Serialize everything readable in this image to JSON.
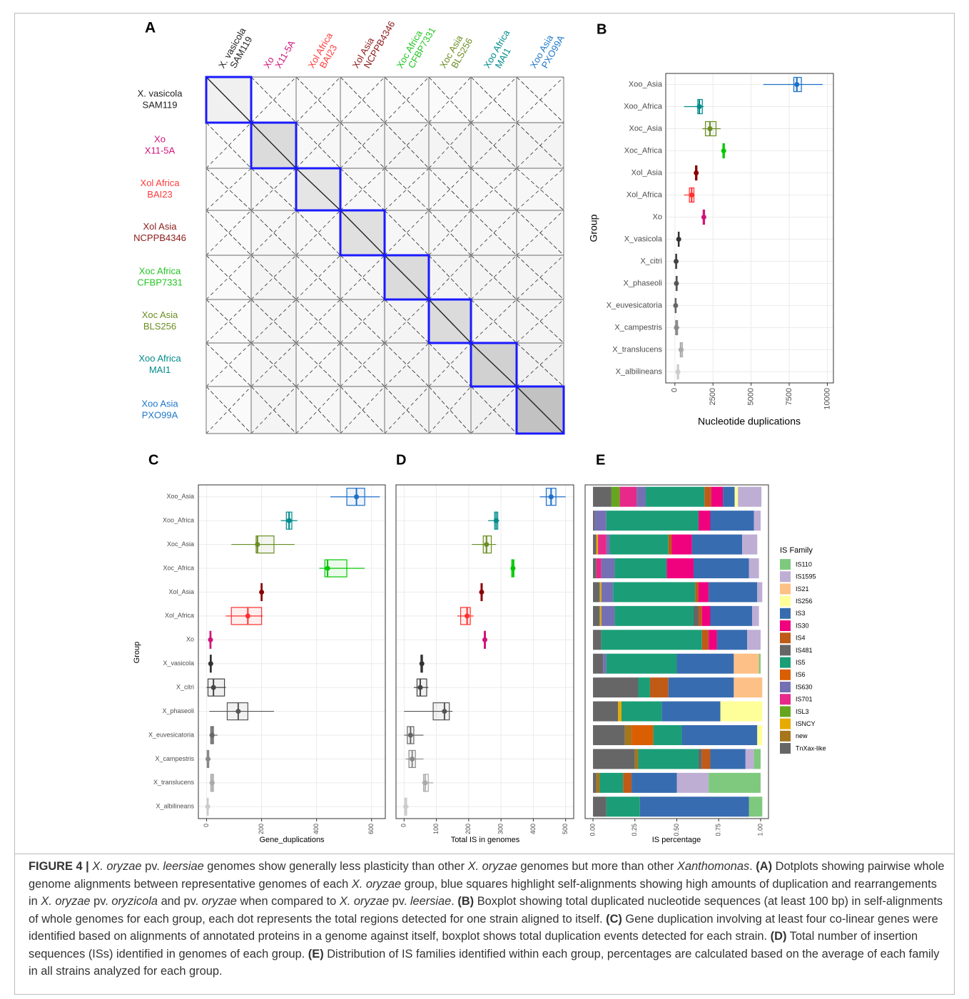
{
  "dotplot": {
    "label": "A",
    "strains": [
      {
        "lines": [
          "X. vasicola",
          "SAM119"
        ],
        "color": "#222222"
      },
      {
        "lines": [
          "Xo",
          "X11-5A"
        ],
        "color": "#d0157a"
      },
      {
        "lines": [
          "Xol Africa",
          "BAI23"
        ],
        "color": "#ff3a3a"
      },
      {
        "lines": [
          "Xol Asia",
          "NCPPB4346"
        ],
        "color": "#8b1a1a"
      },
      {
        "lines": [
          "Xoc Africa",
          "CFBP7331"
        ],
        "color": "#22c422"
      },
      {
        "lines": [
          "Xoc Asia",
          "BLS256"
        ],
        "color": "#6b8e23"
      },
      {
        "lines": [
          "Xoo Africa",
          "MAI1"
        ],
        "color": "#008b8b"
      },
      {
        "lines": [
          "Xoo Asia",
          "PXO99A"
        ],
        "color": "#1f78c8"
      }
    ]
  },
  "chart_data": [
    {
      "type": "boxplot",
      "label": "B",
      "xlabel": "Nucleotide duplications",
      "ylabel": "Group",
      "categories": [
        "Xoo_Asia",
        "Xoo_Africa",
        "Xoc_Asia",
        "Xoc_Africa",
        "Xol_Asia",
        "Xol_Africa",
        "Xo",
        "X_vasicola",
        "X_citri",
        "X_phaseoli",
        "X_euvesicatoria",
        "X_campestris",
        "X_translucens",
        "X_albilineans"
      ],
      "colors": [
        "#1f6fc8",
        "#008b8b",
        "#6b8e23",
        "#00c800",
        "#8b0000",
        "#ff3030",
        "#d0157a",
        "#333333",
        "#444444",
        "#555555",
        "#666666",
        "#888888",
        "#aaaaaa",
        "#cccccc"
      ],
      "min": [
        5800,
        600,
        1800,
        3100,
        1300,
        600,
        1800,
        200,
        0,
        0,
        0,
        0,
        300,
        100
      ],
      "q1": [
        7800,
        1500,
        2000,
        3150,
        1350,
        950,
        1850,
        220,
        50,
        80,
        20,
        50,
        350,
        150
      ],
      "median": [
        8000,
        1600,
        2300,
        3200,
        1400,
        1100,
        1900,
        250,
        80,
        100,
        50,
        100,
        400,
        200
      ],
      "q3": [
        8300,
        1800,
        2700,
        3250,
        1450,
        1250,
        1950,
        280,
        120,
        150,
        80,
        180,
        500,
        250
      ],
      "max": [
        9700,
        1900,
        3000,
        3300,
        1500,
        1300,
        2000,
        300,
        150,
        200,
        100,
        300,
        600,
        300
      ],
      "xlim": [
        -600,
        10400
      ],
      "xticks": [
        0,
        2500,
        5000,
        7500,
        10000
      ],
      "grid": true
    },
    {
      "type": "boxplot",
      "label": "C",
      "xlabel": "Gene_duplications",
      "ylabel": "Group",
      "categories": [
        "Xoo_Asia",
        "Xoo_Africa",
        "Xoc_Asia",
        "Xoc_Africa",
        "Xol_Asia",
        "Xol_Africa",
        "Xo",
        "X_vasicola",
        "X_citri",
        "X_phaseoli",
        "X_euvesicatoria",
        "X_campestris",
        "X_translucens",
        "X_albilineans"
      ],
      "colors": [
        "#1f6fc8",
        "#008b8b",
        "#6b8e23",
        "#00c800",
        "#8b0000",
        "#ff3030",
        "#d0157a",
        "#333333",
        "#444444",
        "#555555",
        "#666666",
        "#888888",
        "#aaaaaa",
        "#cccccc"
      ],
      "min": [
        450,
        270,
        90,
        410,
        195,
        70,
        10,
        12,
        0,
        10,
        10,
        0,
        10,
        0
      ],
      "q1": [
        510,
        290,
        180,
        430,
        198,
        90,
        12,
        13,
        5,
        75,
        15,
        2,
        15,
        2
      ],
      "median": [
        545,
        300,
        185,
        440,
        200,
        150,
        14,
        15,
        25,
        115,
        20,
        5,
        20,
        4
      ],
      "q3": [
        575,
        310,
        245,
        510,
        202,
        200,
        16,
        17,
        65,
        150,
        25,
        8,
        25,
        6
      ],
      "max": [
        630,
        330,
        320,
        575,
        205,
        205,
        18,
        18,
        70,
        245,
        40,
        15,
        30,
        8
      ],
      "xlim": [
        -30,
        650
      ],
      "xticks": [
        0,
        200,
        400,
        600
      ],
      "grid": true
    },
    {
      "type": "boxplot",
      "label": "D",
      "xlabel": "Total IS in genomes",
      "colors": [
        "#1f6fc8",
        "#008b8b",
        "#6b8e23",
        "#00c800",
        "#8b0000",
        "#ff3030",
        "#d0157a",
        "#333333",
        "#444444",
        "#555555",
        "#666666",
        "#888888",
        "#aaaaaa",
        "#cccccc"
      ],
      "min": [
        420,
        260,
        210,
        330,
        235,
        165,
        245,
        50,
        30,
        0,
        0,
        5,
        55,
        0
      ],
      "q1": [
        440,
        280,
        245,
        333,
        238,
        175,
        248,
        52,
        40,
        90,
        10,
        15,
        60,
        2
      ],
      "median": [
        455,
        285,
        255,
        337,
        240,
        195,
        250,
        55,
        50,
        125,
        20,
        25,
        65,
        5
      ],
      "q3": [
        470,
        290,
        270,
        340,
        242,
        205,
        252,
        57,
        70,
        140,
        30,
        35,
        75,
        8
      ],
      "max": [
        500,
        295,
        285,
        345,
        245,
        215,
        255,
        60,
        75,
        150,
        60,
        60,
        90,
        15
      ],
      "xlim": [
        -25,
        525
      ],
      "xticks": [
        0,
        100,
        200,
        300,
        400,
        500
      ],
      "grid": true
    },
    {
      "type": "stacked_bar",
      "label": "E",
      "xlabel": "IS percentage",
      "legend_title": "IS Family",
      "xlim": [
        -0.047,
        1.047
      ],
      "xticks": [
        {
          "value": 0,
          "label": "0.00"
        },
        {
          "value": 0.25,
          "label": "0.25"
        },
        {
          "value": 0.5,
          "label": "0.50"
        },
        {
          "value": 0.75,
          "label": "0.75"
        },
        {
          "value": 1,
          "label": "1.00"
        }
      ],
      "series": [
        {
          "name": "IS110",
          "color": "#7fc97f",
          "values": [
            0,
            0,
            0,
            0,
            0,
            0,
            0,
            0.01,
            0,
            0,
            0,
            0.04,
            0.31,
            0.08
          ]
        },
        {
          "name": "IS1595",
          "color": "#beaed4",
          "values": [
            0.14,
            0.04,
            0.09,
            0.06,
            0.03,
            0.04,
            0.08,
            0,
            0,
            0,
            0,
            0.05,
            0.19,
            0
          ]
        },
        {
          "name": "IS21",
          "color": "#fdc086",
          "values": [
            0,
            0,
            0,
            0,
            0,
            0,
            0,
            0.15,
            0.17,
            0,
            0,
            0,
            0,
            0
          ]
        },
        {
          "name": "IS256",
          "color": "#ffff99",
          "values": [
            0.02,
            0,
            0,
            0,
            0,
            0,
            0,
            0,
            0,
            0.25,
            0.03,
            0,
            0,
            0
          ]
        },
        {
          "name": "IS3",
          "color": "#386cb0",
          "values": [
            0.07,
            0.26,
            0.3,
            0.33,
            0.29,
            0.25,
            0.18,
            0.34,
            0.39,
            0.35,
            0.45,
            0.21,
            0.27,
            0.65
          ]
        },
        {
          "name": "IS30",
          "color": "#f0027f",
          "values": [
            0.07,
            0.07,
            0.12,
            0.16,
            0.06,
            0.05,
            0.05,
            0,
            0,
            0,
            0,
            0,
            0,
            0
          ]
        },
        {
          "name": "IS4",
          "color": "#bf5b17",
          "values": [
            0.04,
            0,
            0.02,
            0,
            0.02,
            0.02,
            0.04,
            0,
            0.11,
            0,
            0,
            0.05,
            0.05,
            0
          ]
        },
        {
          "name": "IS481",
          "color": "#666666",
          "values": [
            0,
            0,
            0,
            0,
            0,
            0.03,
            0,
            0,
            0,
            0,
            0,
            0.02,
            0,
            0
          ]
        },
        {
          "name": "IS5",
          "color": "#1b9e77",
          "values": [
            0.35,
            0.55,
            0.35,
            0.31,
            0.49,
            0.47,
            0.6,
            0.42,
            0.07,
            0.24,
            0.17,
            0.36,
            0.14,
            0.2
          ]
        },
        {
          "name": "IS6",
          "color": "#d95f02",
          "values": [
            0,
            0,
            0,
            0,
            0,
            0,
            0,
            0,
            0,
            0,
            0.13,
            0,
            0,
            0
          ]
        },
        {
          "name": "IS630",
          "color": "#7570b3",
          "values": [
            0.055,
            0.07,
            0.02,
            0.08,
            0.07,
            0.08,
            0,
            0.02,
            0,
            0,
            0,
            0,
            0,
            0
          ]
        },
        {
          "name": "IS701",
          "color": "#e7298a",
          "values": [
            0.1,
            0,
            0.05,
            0.03,
            0,
            0,
            0,
            0,
            0,
            0,
            0,
            0,
            0,
            0
          ]
        },
        {
          "name": "ISL3",
          "color": "#66a61e",
          "values": [
            0.05,
            0,
            0,
            0,
            0,
            0,
            0,
            0,
            0,
            0,
            0,
            0,
            0,
            0
          ]
        },
        {
          "name": "ISNCY",
          "color": "#e6ab02",
          "values": [
            0,
            0,
            0.01,
            0,
            0.01,
            0.01,
            0,
            0,
            0,
            0.02,
            0,
            0,
            0,
            0
          ]
        },
        {
          "name": "new",
          "color": "#a6761d",
          "values": [
            0,
            0,
            0,
            0,
            0,
            0,
            0,
            0,
            0,
            0,
            0.04,
            0.02,
            0.02,
            0
          ]
        },
        {
          "name": "TnXax-like",
          "color": "#666666",
          "values": [
            0.11,
            0.01,
            0.02,
            0.02,
            0.04,
            0.04,
            0.05,
            0.06,
            0.27,
            0.15,
            0.19,
            0.25,
            0.02,
            0.08
          ]
        }
      ]
    }
  ],
  "caption": {
    "runs": [
      "FIGURE 4 | ",
      "X. oryzae",
      " pv. ",
      "leersiae",
      " genomes show generally less plasticity than other ",
      "X. oryzae",
      " genomes but more than other ",
      "Xanthomonas",
      ". ",
      "(A)",
      " Dotplots showing pairwise whole genome alignments between representative genomes of each ",
      "X. oryzae",
      " group, blue squares highlight self-alignments showing high amounts of duplication and rearrangements in ",
      "X. oryzae",
      " pv. ",
      "oryzicola",
      " and pv. ",
      "oryzae",
      " when compared to ",
      "X. oryzae",
      " pv. ",
      "leersiae",
      ". ",
      "(B)",
      " Boxplot showing total duplicated nucleotide sequences (at least 100 bp) in self-alignments of whole genomes for each group, each dot represents the total regions detected for one strain aligned to itself. ",
      "(C)",
      " Gene duplication involving at least four co-linear genes were identified based on alignments of annotated proteins in a genome against itself, boxplot shows total duplication events detected for each strain. ",
      "(D)",
      " Total number of insertion sequences (ISs) identified in genomes of each group. ",
      "(E)",
      " Distribution of IS families identified within each group, percentages are calculated based on the average of each family in all strains analyzed for each group."
    ]
  }
}
